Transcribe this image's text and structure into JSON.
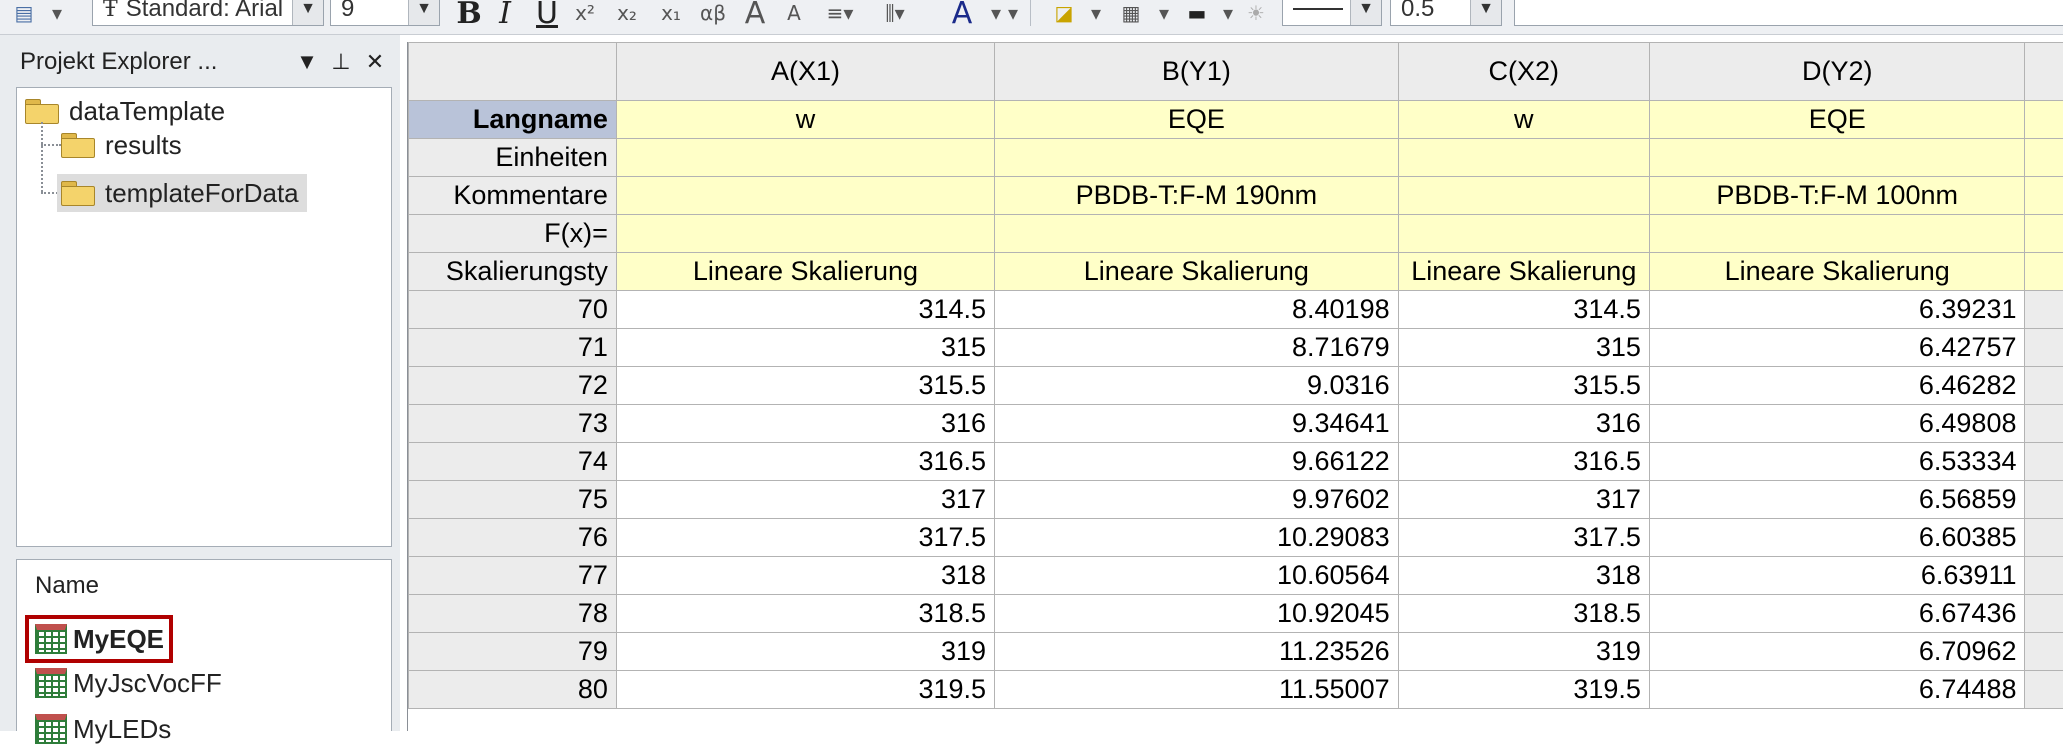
{
  "toolbar": {
    "font_name": "Standard: Arial",
    "font_size": "9",
    "line_width": "0.5",
    "bold": "B",
    "italic": "I",
    "underline": "U",
    "font_icon": "A"
  },
  "project_explorer": {
    "title": "Projekt Explorer ...",
    "root": "dataTemplate",
    "children": [
      "results",
      "templateForData"
    ],
    "selected": "templateForData"
  },
  "list": {
    "name_header": "Name",
    "items": [
      "MyEQE",
      "MyJscVocFF",
      "MyLEDs"
    ],
    "highlighted": "MyEQE"
  },
  "worksheet": {
    "columns": [
      "A(X1)",
      "B(Y1)",
      "C(X2)",
      "D(Y2)"
    ],
    "label_rows": [
      {
        "name": "Langname",
        "values": [
          "w",
          "EQE",
          "w",
          "EQE"
        ]
      },
      {
        "name": "Einheiten",
        "values": [
          "",
          "",
          "",
          ""
        ]
      },
      {
        "name": "Kommentare",
        "values": [
          "",
          "PBDB-T:F-M 190nm",
          "",
          "PBDB-T:F-M 100nm"
        ]
      },
      {
        "name": "F(x)=",
        "values": [
          "",
          "",
          "",
          ""
        ]
      },
      {
        "name": "Skalierungsty",
        "values": [
          "Lineare Skalierung",
          "Lineare Skalierung",
          "Lineare Skalierung",
          "Lineare Skalierung"
        ]
      }
    ],
    "data_rows": [
      {
        "row": "70",
        "values": [
          "314.5",
          "8.40198",
          "314.5",
          "6.39231"
        ]
      },
      {
        "row": "71",
        "values": [
          "315",
          "8.71679",
          "315",
          "6.42757"
        ]
      },
      {
        "row": "72",
        "values": [
          "315.5",
          "9.0316",
          "315.5",
          "6.46282"
        ]
      },
      {
        "row": "73",
        "values": [
          "316",
          "9.34641",
          "316",
          "6.49808"
        ]
      },
      {
        "row": "74",
        "values": [
          "316.5",
          "9.66122",
          "316.5",
          "6.53334"
        ]
      },
      {
        "row": "75",
        "values": [
          "317",
          "9.97602",
          "317",
          "6.56859"
        ]
      },
      {
        "row": "76",
        "values": [
          "317.5",
          "10.29083",
          "317.5",
          "6.60385"
        ]
      },
      {
        "row": "77",
        "values": [
          "318",
          "10.60564",
          "318",
          "6.63911"
        ]
      },
      {
        "row": "78",
        "values": [
          "318.5",
          "10.92045",
          "318.5",
          "6.67436"
        ]
      },
      {
        "row": "79",
        "values": [
          "319",
          "11.23526",
          "319",
          "6.70962"
        ]
      },
      {
        "row": "80",
        "values": [
          "319.5",
          "11.55007",
          "319.5",
          "6.74488"
        ]
      }
    ]
  },
  "colors": {
    "label_fill": "#ffffc8",
    "header_fill": "#ececec",
    "selected_row_header": "#b9c3d9",
    "highlight_border": "#b00000"
  }
}
